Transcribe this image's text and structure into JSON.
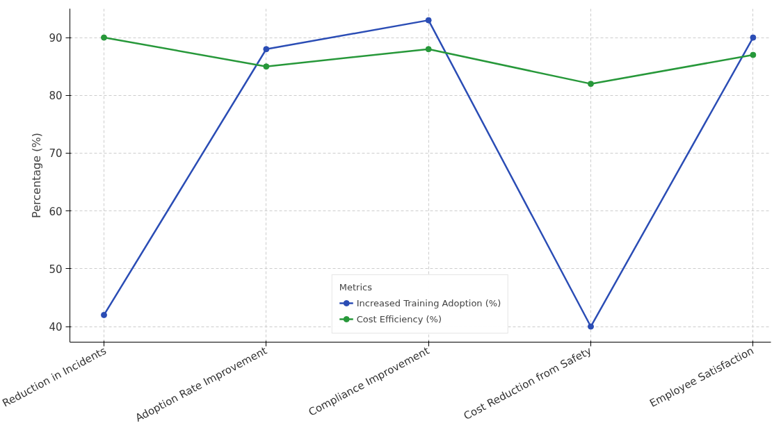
{
  "chart_data": {
    "type": "line",
    "ylabel": "Percentage (%)",
    "legend_title": "Metrics",
    "categories": [
      "Reduction in Incidents",
      "Adoption Rate Improvement",
      "Compliance Improvement",
      "Cost Reduction from Safety",
      "Employee Satisfaction"
    ],
    "series": [
      {
        "name": "Increased Training Adoption (%)",
        "color": "#2b4db5",
        "values": [
          42,
          88,
          93,
          40,
          90
        ]
      },
      {
        "name": "Cost Efficiency (%)",
        "color": "#27983a",
        "values": [
          90,
          85,
          88,
          82,
          87
        ]
      }
    ],
    "ylim": [
      37.3,
      95
    ],
    "yticks": [
      40,
      50,
      60,
      70,
      80,
      90
    ],
    "grid": true,
    "legend": "bottom",
    "marker": "circle",
    "line_style": "solid"
  }
}
